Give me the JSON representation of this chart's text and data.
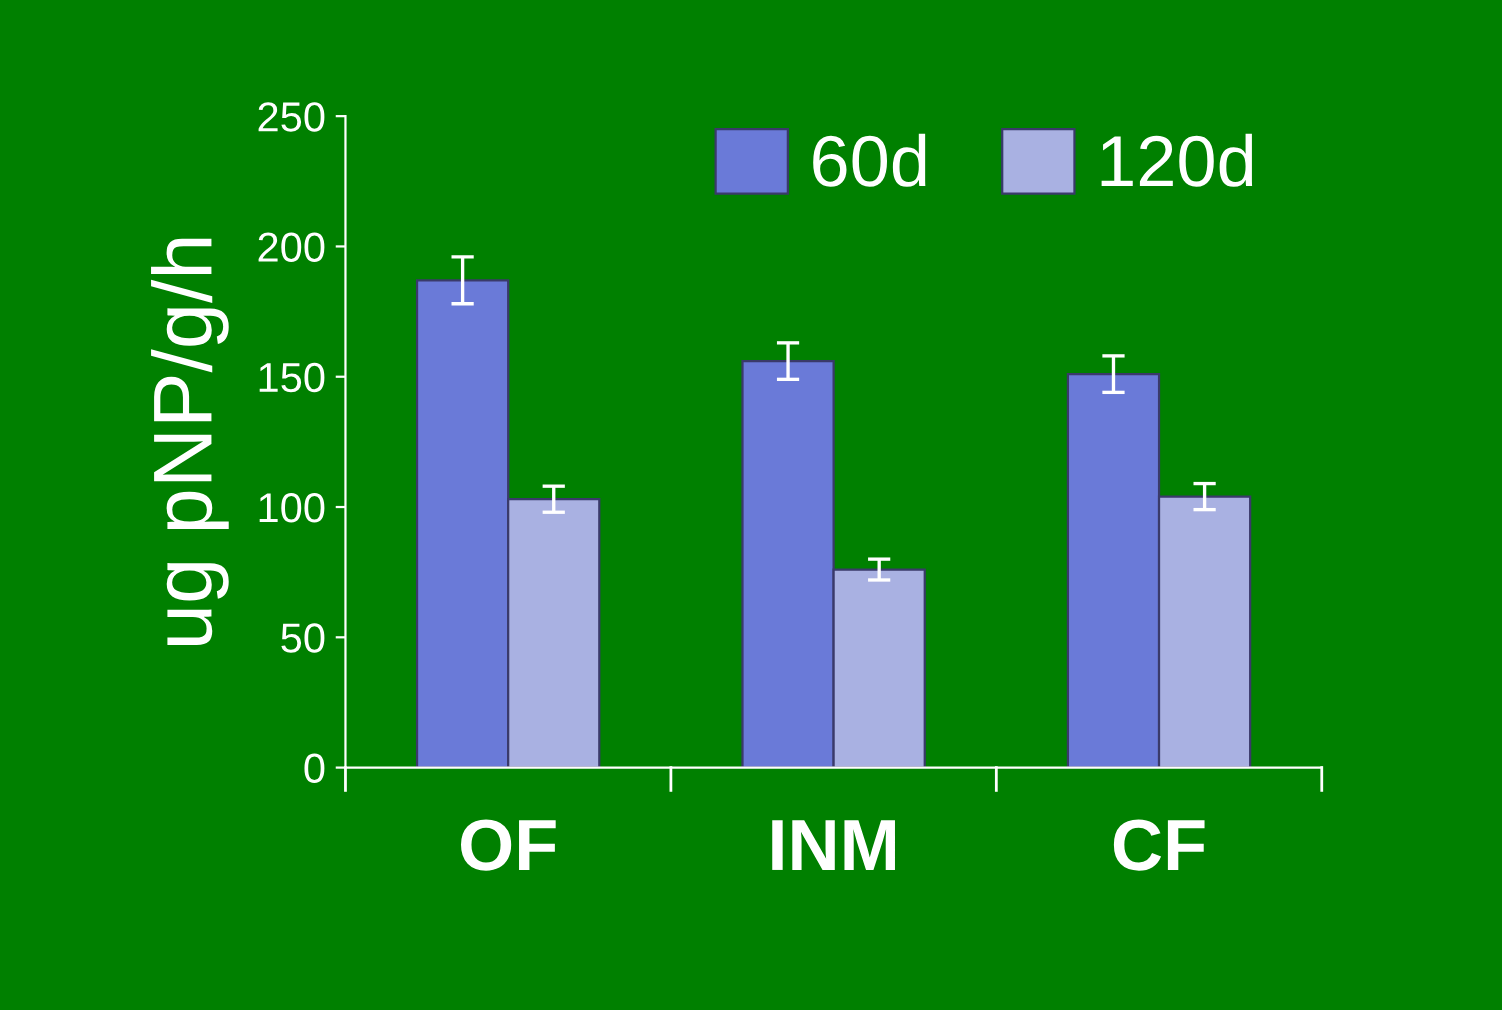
{
  "chart_data": {
    "type": "bar",
    "ylabel": "ug pNP/g/h",
    "categories": [
      "OF",
      "INM",
      "CF"
    ],
    "series": [
      {
        "name": "60d",
        "color": "#6a7ad8",
        "values": [
          187,
          156,
          151
        ],
        "errors": [
          9,
          7,
          7
        ]
      },
      {
        "name": "120d",
        "color": "#a9b1e2",
        "values": [
          103,
          76,
          104
        ],
        "errors": [
          5,
          4,
          5
        ]
      }
    ],
    "ylim": [
      0,
      250
    ],
    "yticks": [
      0,
      50,
      100,
      150,
      200,
      250
    ],
    "grid": false,
    "legend": "top right"
  }
}
